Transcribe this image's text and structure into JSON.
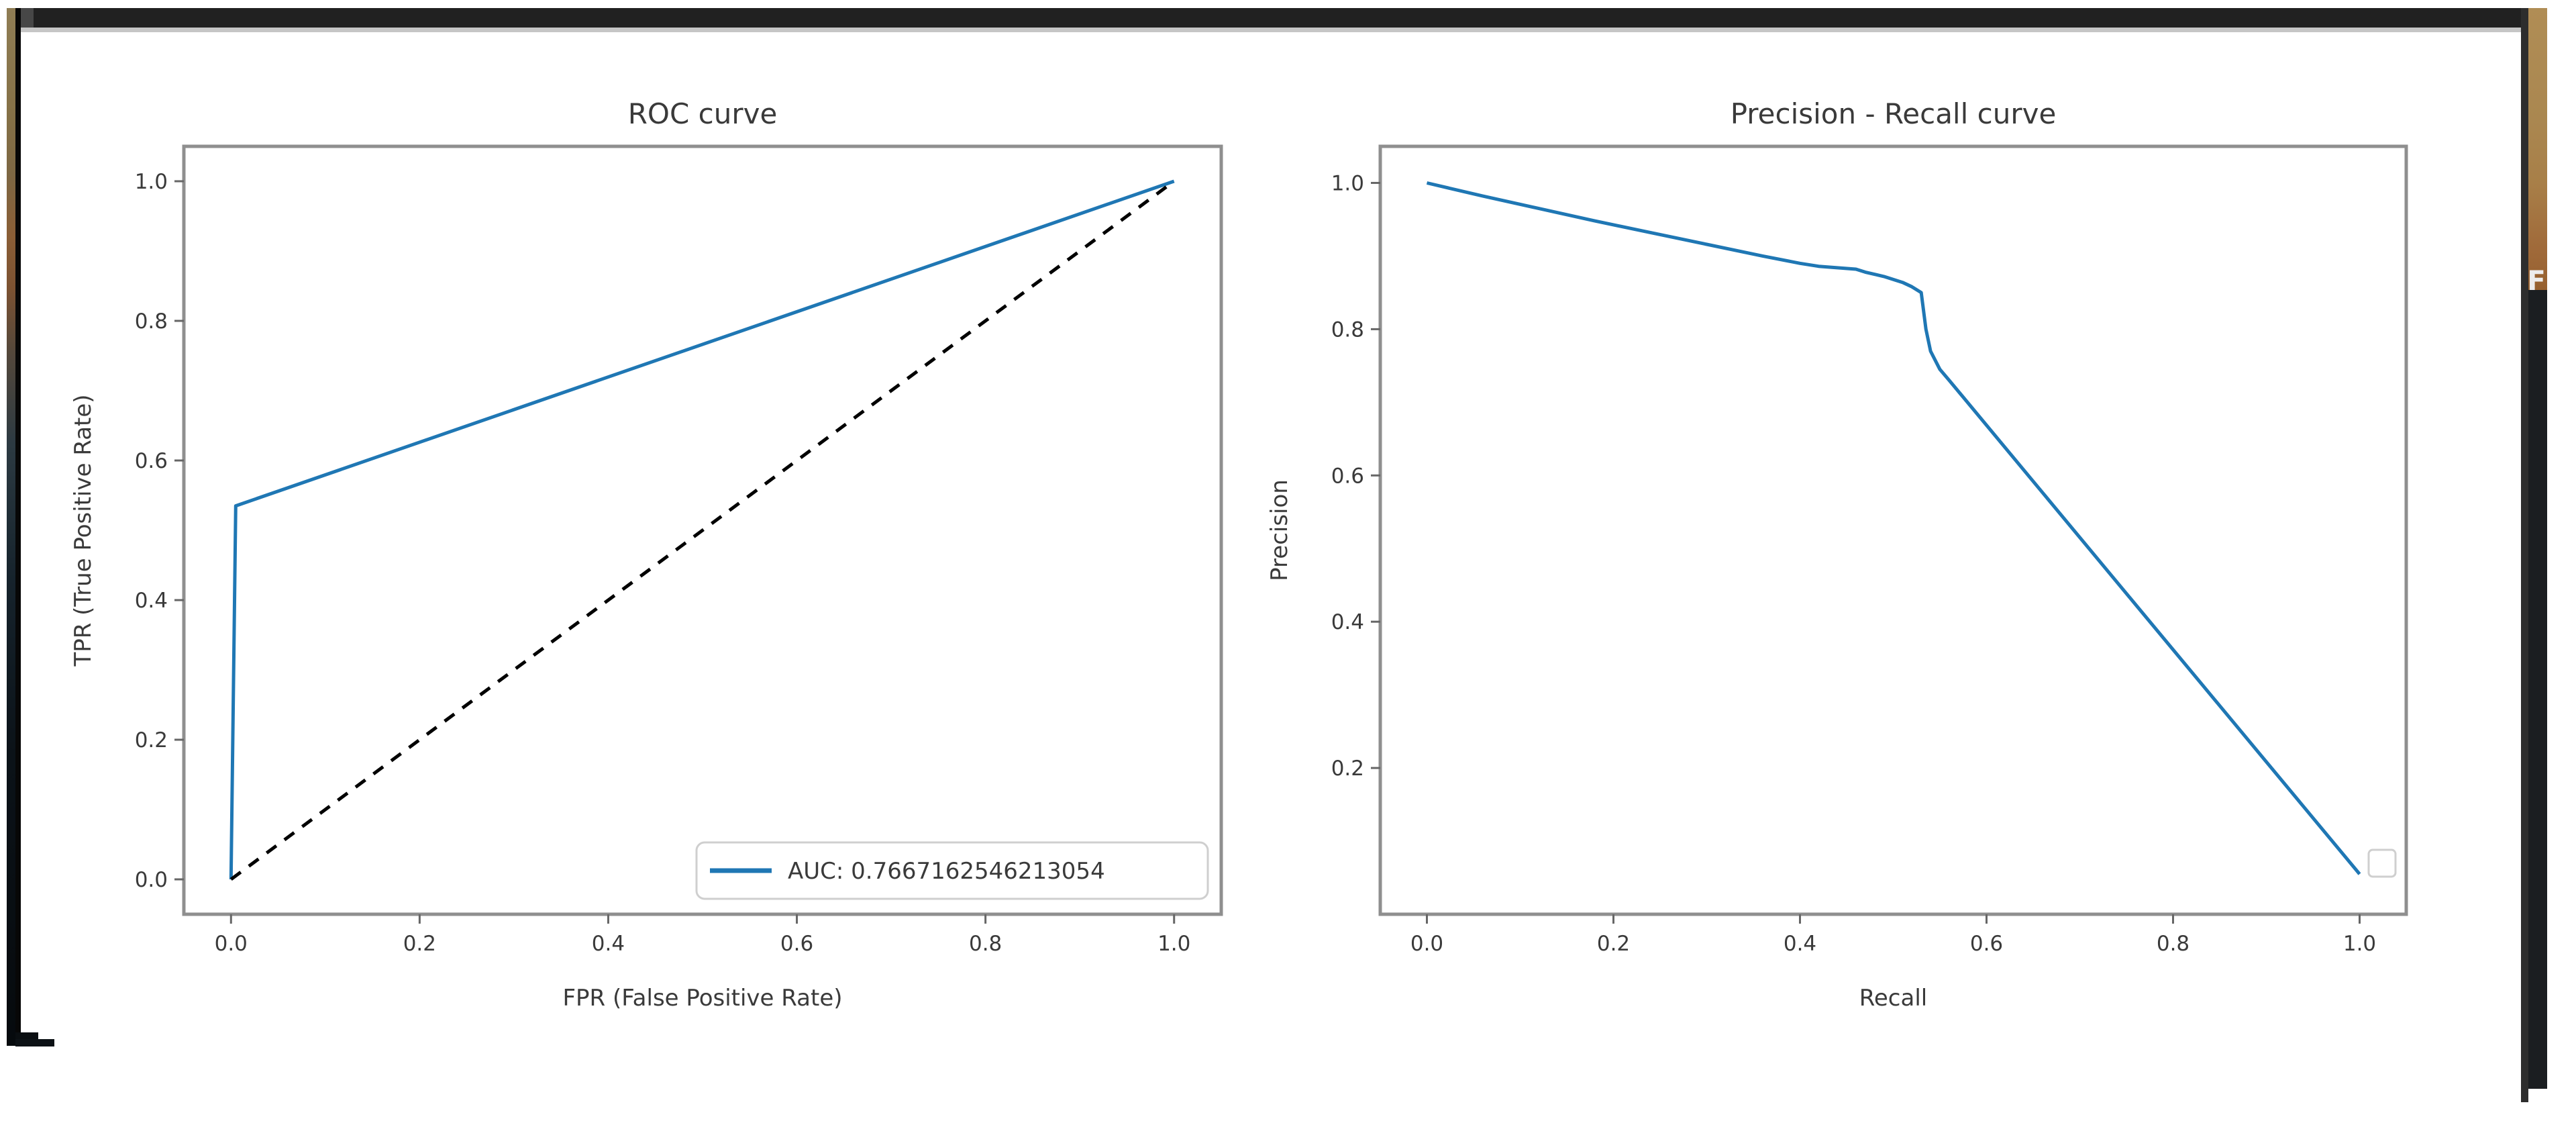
{
  "window": {
    "bg": "#ffffff",
    "top_bar": {
      "color": "#212121",
      "left_cap_color": "#474747",
      "underline_color": "#c6c6c6"
    },
    "left_strip": {
      "gradient_top": "#8f7d54",
      "gradient_mid": "#8a5e36",
      "gradient_bottom": "#060a0d"
    },
    "right_strip": {
      "tan_top": "#b08d55",
      "tan_bottom": "#96602f",
      "dark": "#1b1e21",
      "letter": "F",
      "letter_color": "#ededed"
    }
  },
  "figure": {
    "background": "#ffffff",
    "spine_color": "#8f8f8f",
    "tick_color": "#666666",
    "text_color": "#3a3a3a",
    "accent_blue": "#1f77b4",
    "legend_border": "#cfcfcf"
  },
  "chart_data": [
    {
      "type": "line",
      "title": "ROC curve",
      "xlabel": "FPR (False Positive Rate)",
      "ylabel": "TPR (True Positive Rate)",
      "xlim": [
        -0.05,
        1.05
      ],
      "ylim": [
        -0.05,
        1.05
      ],
      "xticks": [
        0.0,
        0.2,
        0.4,
        0.6,
        0.8,
        1.0
      ],
      "yticks": [
        0.0,
        0.2,
        0.4,
        0.6,
        0.8,
        1.0
      ],
      "grid": false,
      "legend": {
        "position": "lower right",
        "entries": [
          {
            "label": "AUC: 0.7667162546213054",
            "color": "#1f77b4",
            "style": "solid"
          }
        ]
      },
      "series": [
        {
          "name": "roc",
          "color": "#1f77b4",
          "style": "solid",
          "points": [
            [
              0.0,
              0.0
            ],
            [
              0.005,
              0.535
            ],
            [
              1.0,
              1.0
            ]
          ]
        },
        {
          "name": "chance-diagonal",
          "color": "#000000",
          "style": "dashed",
          "points": [
            [
              0.0,
              0.0
            ],
            [
              1.0,
              1.0
            ]
          ]
        }
      ]
    },
    {
      "type": "line",
      "title": "Precision - Recall curve",
      "xlabel": "Recall",
      "ylabel": "Precision",
      "xlim": [
        -0.05,
        1.05
      ],
      "ylim": [
        0.0,
        1.05
      ],
      "xticks": [
        0.0,
        0.2,
        0.4,
        0.6,
        0.8,
        1.0
      ],
      "yticks": [
        0.2,
        0.4,
        0.6,
        0.8,
        1.0
      ],
      "grid": false,
      "empty_legend_box": true,
      "series": [
        {
          "name": "precision-recall",
          "color": "#1f77b4",
          "style": "solid",
          "points": [
            [
              0.0,
              1.0
            ],
            [
              0.06,
              0.982
            ],
            [
              0.12,
              0.965
            ],
            [
              0.18,
              0.948
            ],
            [
              0.24,
              0.932
            ],
            [
              0.3,
              0.916
            ],
            [
              0.36,
              0.9
            ],
            [
              0.4,
              0.89
            ],
            [
              0.42,
              0.886
            ],
            [
              0.44,
              0.884
            ],
            [
              0.46,
              0.882
            ],
            [
              0.47,
              0.878
            ],
            [
              0.49,
              0.872
            ],
            [
              0.51,
              0.864
            ],
            [
              0.52,
              0.858
            ],
            [
              0.53,
              0.85
            ],
            [
              0.535,
              0.8
            ],
            [
              0.54,
              0.77
            ],
            [
              0.55,
              0.745
            ],
            [
              0.56,
              0.73
            ],
            [
              1.0,
              0.055
            ]
          ]
        }
      ]
    }
  ]
}
